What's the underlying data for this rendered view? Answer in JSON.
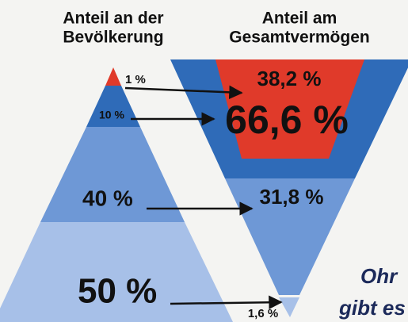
{
  "headers": {
    "left": [
      "Anteil an der",
      "Bevölkerung"
    ],
    "right": [
      "Anteil am",
      "Gesamtvermögen"
    ]
  },
  "population": [
    "1 %",
    "10 %",
    "40 %",
    "50 %"
  ],
  "wealth": [
    "38,2 %",
    "66,6 %",
    "31,8 %",
    "1,6 %"
  ],
  "caption": [
    "Ohr",
    "gibt es"
  ]
}
